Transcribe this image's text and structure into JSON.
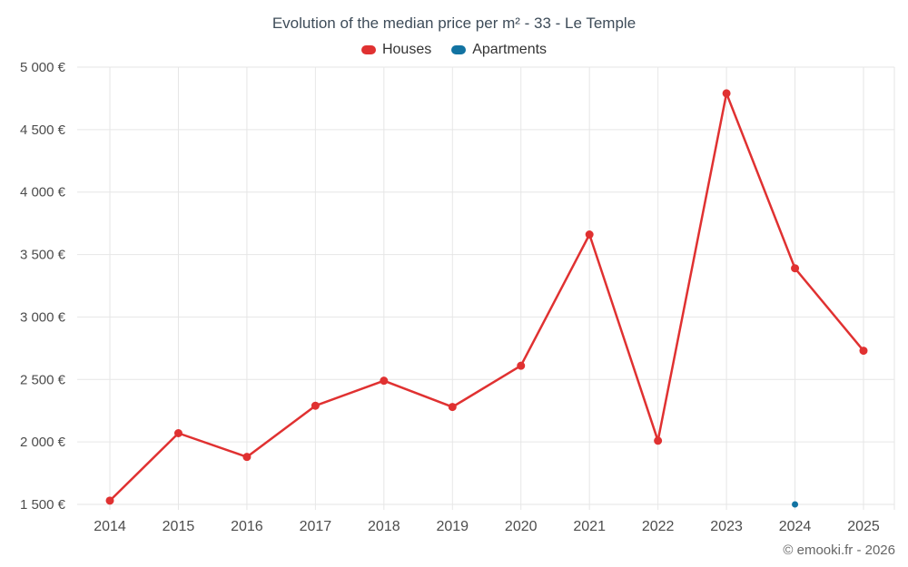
{
  "title": "Evolution of the median price per m² - 33 - Le Temple",
  "footer": "© emooki.fr - 2026",
  "legend": {
    "houses_label": "Houses",
    "apartments_label": "Apartments"
  },
  "colors": {
    "houses": "#e03131",
    "apartments": "#1273a2",
    "grid": "#e6e6e6",
    "axis_text": "#4d4d4d",
    "title_text": "#3e4c59"
  },
  "chart_data": {
    "type": "line",
    "title": "Evolution of the median price per m² - 33 - Le Temple",
    "x": [
      2014,
      2015,
      2016,
      2017,
      2018,
      2019,
      2020,
      2021,
      2022,
      2023,
      2024,
      2025
    ],
    "series": [
      {
        "name": "Houses",
        "color": "#e03131",
        "values": [
          1530,
          2070,
          1880,
          2290,
          2490,
          2280,
          2610,
          3660,
          2010,
          4790,
          3390,
          2730
        ]
      },
      {
        "name": "Apartments",
        "color": "#1273a2",
        "values": [
          null,
          null,
          null,
          null,
          null,
          null,
          null,
          null,
          null,
          null,
          1500,
          null
        ]
      }
    ],
    "ylim": [
      1500,
      5000
    ],
    "ytick_step": 500,
    "ytick_labels": [
      "1 500 €",
      "2 000 €",
      "2 500 €",
      "3 000 €",
      "3 500 €",
      "4 000 €",
      "4 500 €",
      "5 000 €"
    ],
    "xlabel": "",
    "ylabel": "",
    "grid": true,
    "legend_position": "top"
  }
}
